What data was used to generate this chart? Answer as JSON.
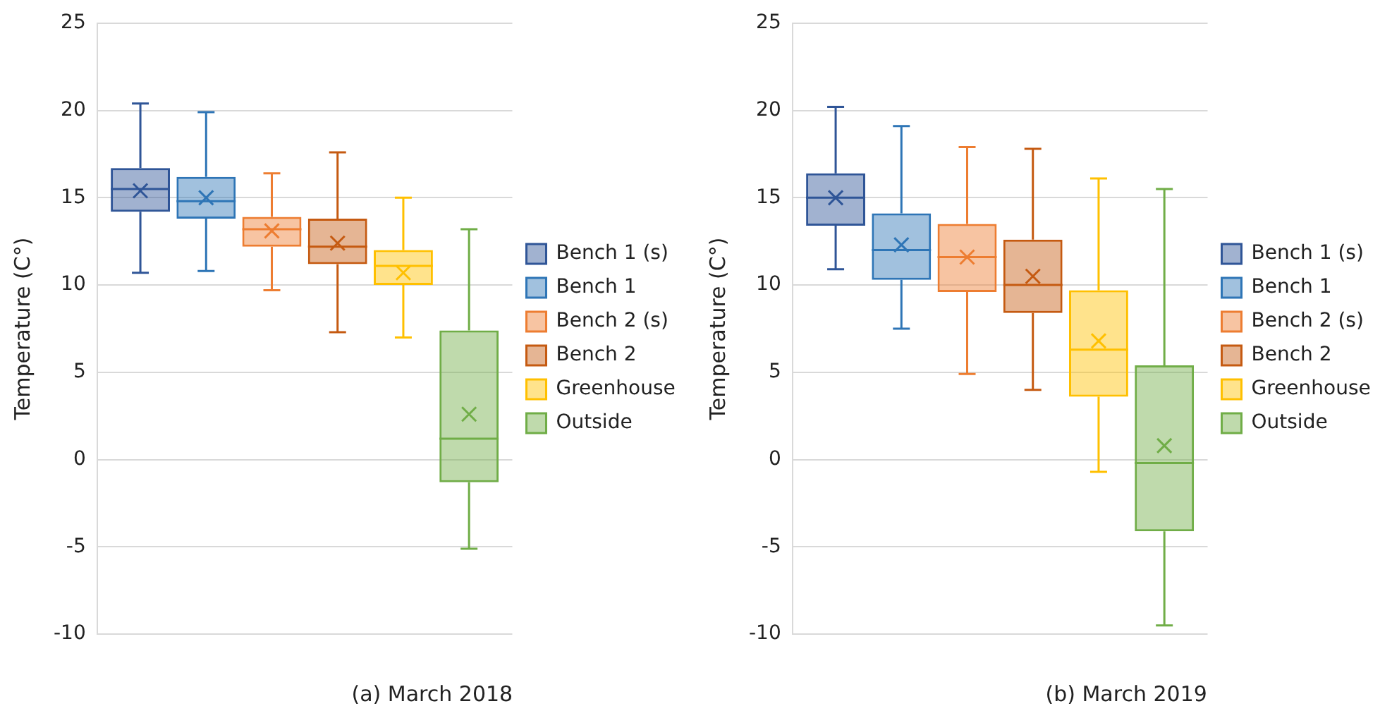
{
  "chart_data": [
    {
      "type": "box",
      "ylabel": "Temperature (C°)",
      "categories": [
        null
      ],
      "ylim": [
        -10,
        25
      ],
      "yticks": [
        -10,
        -5,
        0,
        5,
        10,
        15,
        20,
        25
      ],
      "grid": "y",
      "legend": "right",
      "annotations": [
        "(a) March 2018"
      ],
      "series": [
        {
          "name": "Bench 1 (s)",
          "color": "#2f5597",
          "boxes": [
            {
              "low": 10.7,
              "q1": 14.2,
              "median": 15.5,
              "q3": 16.7,
              "high": 20.4,
              "mean": 15.4
            }
          ]
        },
        {
          "name": "Bench 1",
          "color": "#2e75b6",
          "boxes": [
            {
              "low": 10.8,
              "q1": 13.8,
              "median": 14.8,
              "q3": 16.2,
              "high": 19.9,
              "mean": 15.0
            }
          ]
        },
        {
          "name": "Bench 2 (s)",
          "color": "#ed7d31",
          "boxes": [
            {
              "low": 9.7,
              "q1": 12.2,
              "median": 13.2,
              "q3": 13.9,
              "high": 16.4,
              "mean": 13.1
            }
          ]
        },
        {
          "name": "Bench 2",
          "color": "#c55a11",
          "boxes": [
            {
              "low": 7.3,
              "q1": 11.2,
              "median": 12.2,
              "q3": 13.8,
              "high": 17.6,
              "mean": 12.4
            }
          ]
        },
        {
          "name": "Greenhouse",
          "color": "#ffc000",
          "boxes": [
            {
              "low": 7.0,
              "q1": 10.0,
              "median": 11.1,
              "q3": 12.0,
              "high": 15.0,
              "mean": 10.7
            }
          ]
        },
        {
          "name": "Outside",
          "color": "#70ad47",
          "boxes": [
            {
              "low": -5.1,
              "q1": -1.3,
              "median": 1.2,
              "q3": 7.4,
              "high": 13.2,
              "mean": 2.6
            }
          ]
        }
      ]
    },
    {
      "type": "box",
      "ylabel": "Temperature (C°)",
      "categories": [
        null
      ],
      "ylim": [
        -10,
        25
      ],
      "yticks": [
        -10,
        -5,
        0,
        5,
        10,
        15,
        20,
        25
      ],
      "grid": "y",
      "legend": "right",
      "annotations": [
        "(b) March 2019"
      ],
      "series": [
        {
          "name": "Bench 1 (s)",
          "color": "#2f5597",
          "boxes": [
            {
              "low": 10.9,
              "q1": 13.4,
              "median": 15.0,
              "q3": 16.4,
              "high": 20.2,
              "mean": 15.0
            }
          ]
        },
        {
          "name": "Bench 1",
          "color": "#2e75b6",
          "boxes": [
            {
              "low": 7.5,
              "q1": 10.3,
              "median": 12.0,
              "q3": 14.1,
              "high": 19.1,
              "mean": 12.3
            }
          ]
        },
        {
          "name": "Bench 2 (s)",
          "color": "#ed7d31",
          "boxes": [
            {
              "low": 4.9,
              "q1": 9.6,
              "median": 11.6,
              "q3": 13.5,
              "high": 17.9,
              "mean": 11.6
            }
          ]
        },
        {
          "name": "Bench 2",
          "color": "#c55a11",
          "boxes": [
            {
              "low": 4.0,
              "q1": 8.4,
              "median": 10.0,
              "q3": 12.6,
              "high": 17.8,
              "mean": 10.5
            }
          ]
        },
        {
          "name": "Greenhouse",
          "color": "#ffc000",
          "boxes": [
            {
              "low": -0.7,
              "q1": 3.6,
              "median": 6.3,
              "q3": 9.7,
              "high": 16.1,
              "mean": 6.8
            }
          ]
        },
        {
          "name": "Outside",
          "color": "#70ad47",
          "boxes": [
            {
              "low": -9.5,
              "q1": -4.1,
              "median": -0.2,
              "q3": 5.4,
              "high": 15.5,
              "mean": 0.8
            }
          ]
        }
      ]
    }
  ]
}
